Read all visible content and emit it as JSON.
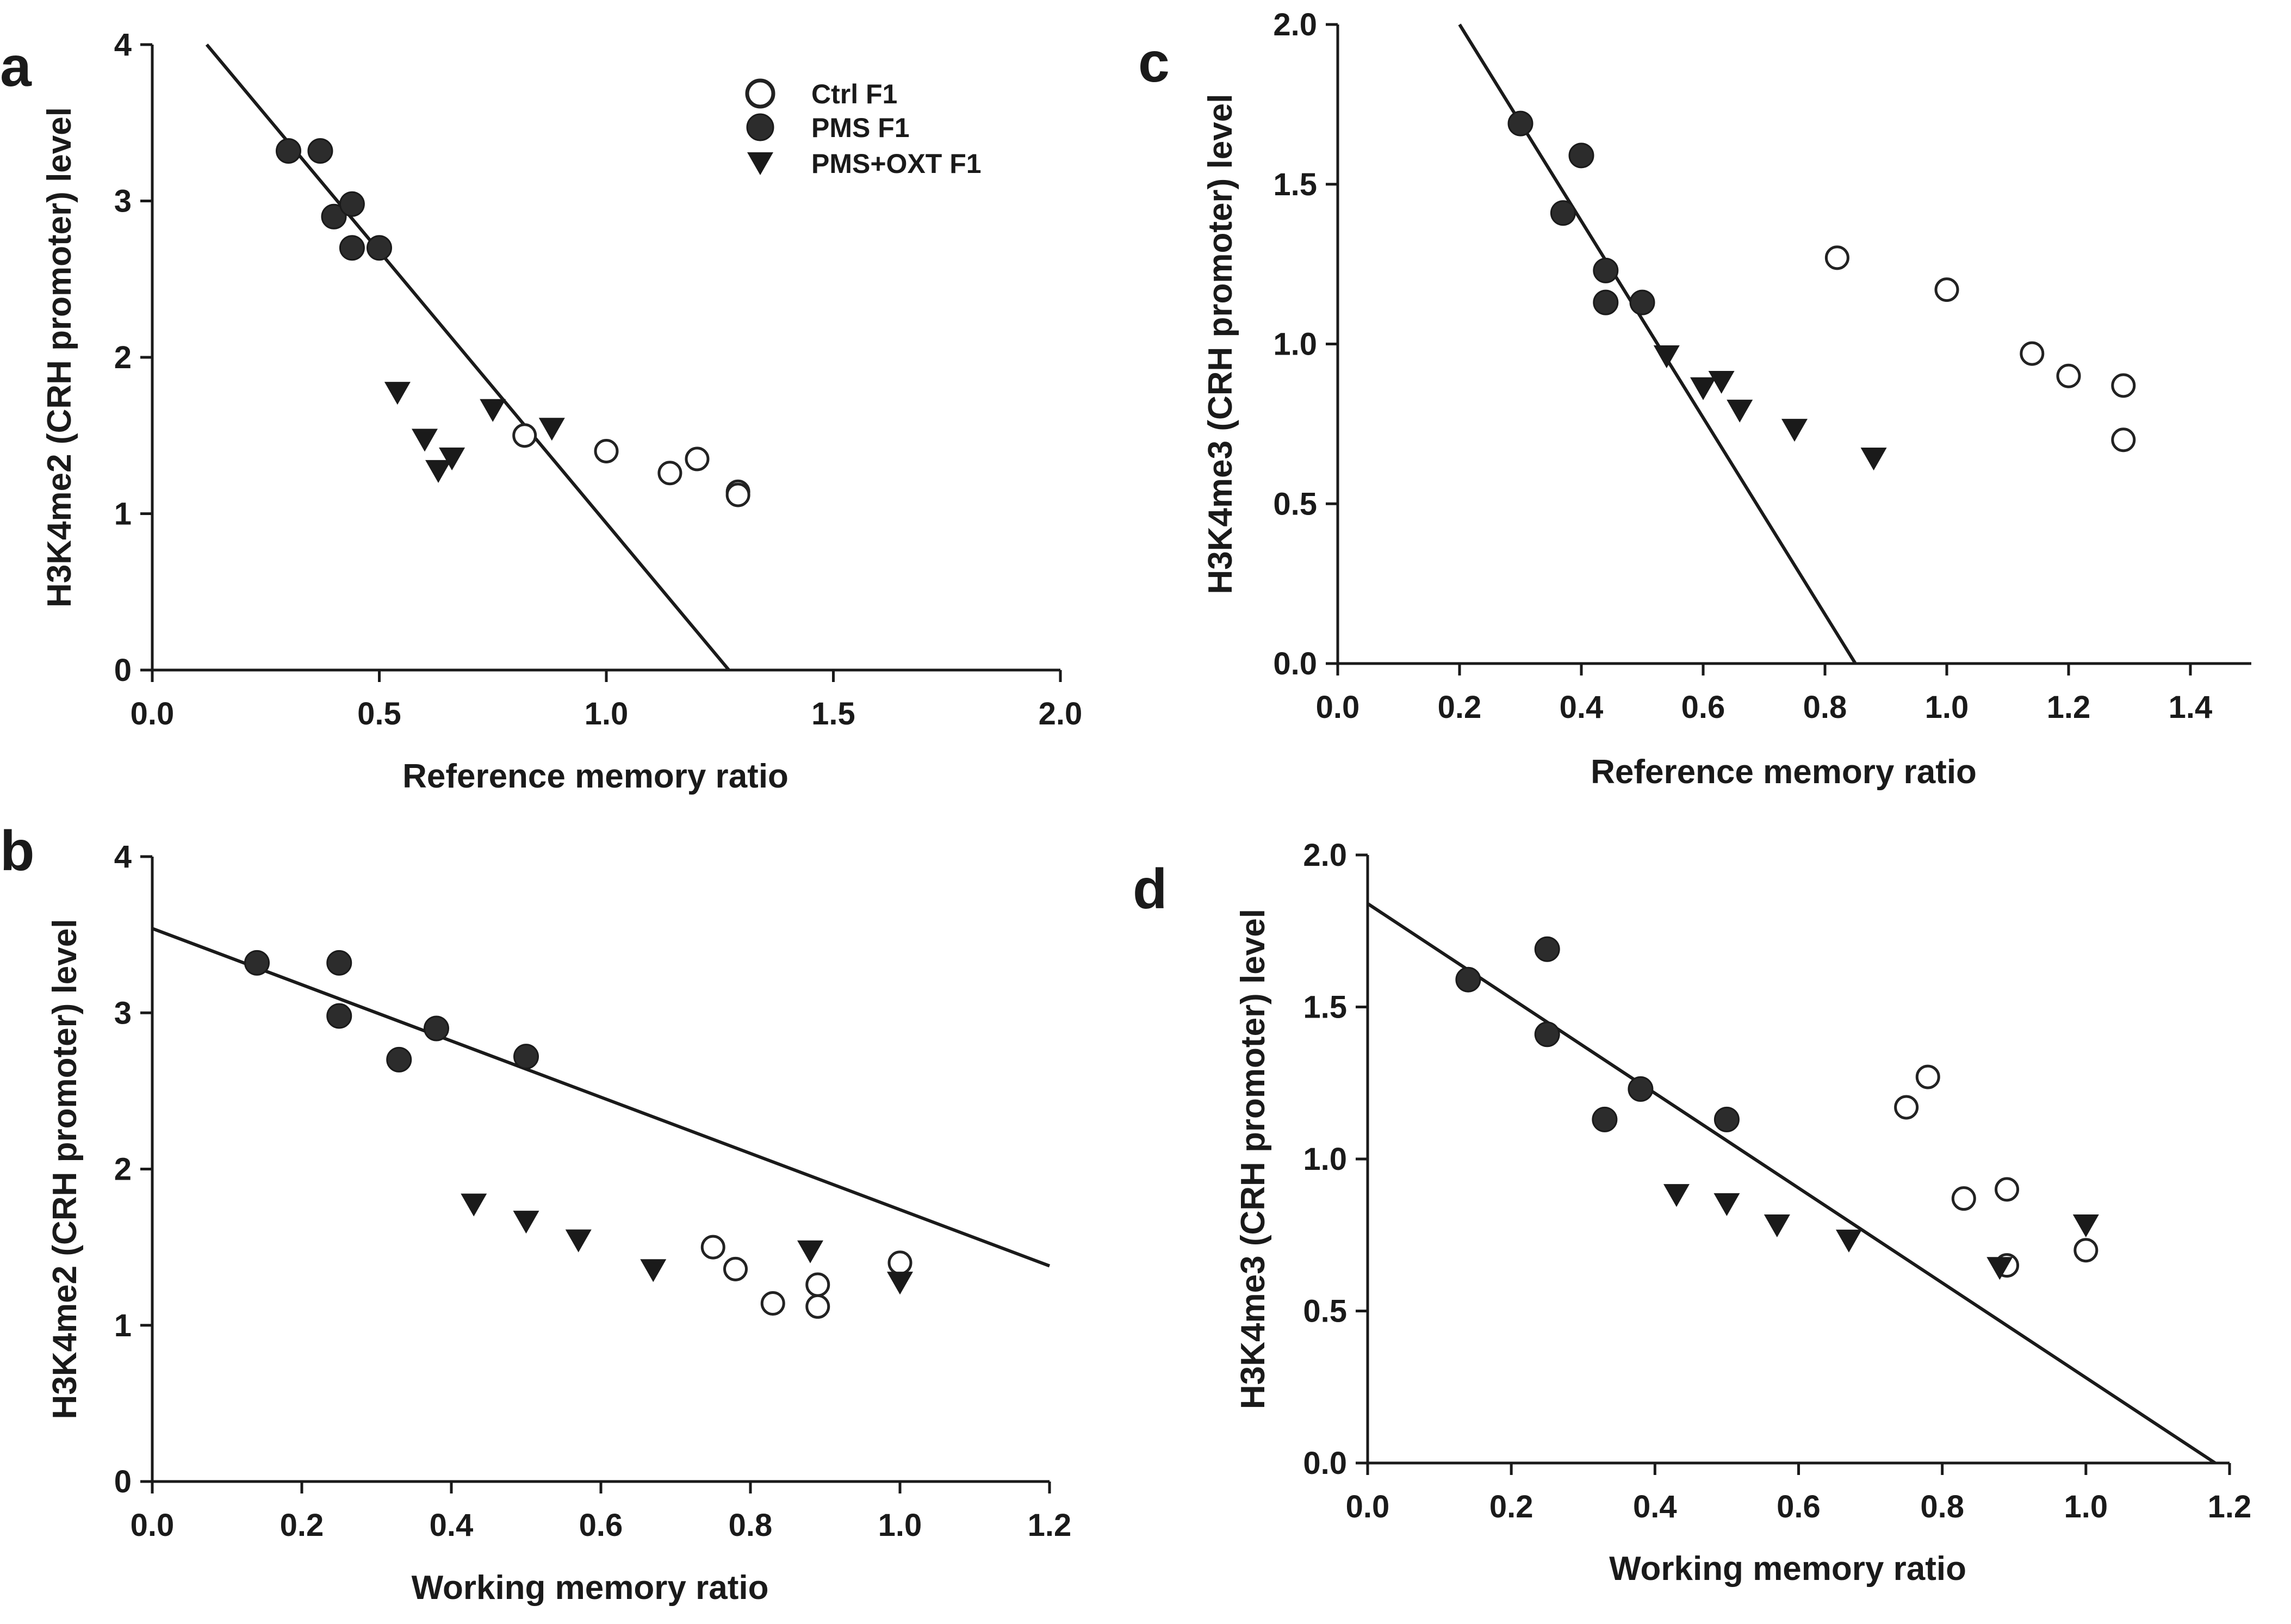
{
  "figure": {
    "legend": [
      {
        "key": "ctrl",
        "label": "Ctrl F1",
        "marker": "open-circle"
      },
      {
        "key": "pms",
        "label": "PMS F1",
        "marker": "filled-circle"
      },
      {
        "key": "oxt",
        "label": "PMS+OXT F1",
        "marker": "filled-triangle-down"
      }
    ]
  },
  "chart_data": [
    {
      "panel": "a",
      "type": "scatter",
      "xlabel": "Reference memory ratio",
      "ylabel": "H3K4me2 (CRH promoter) level",
      "xlim": [
        0,
        2.0
      ],
      "ylim": [
        0,
        4
      ],
      "xticks": [
        "0.0",
        "0.5",
        "1.0",
        "1.5",
        "2.0"
      ],
      "yticks": [
        "0",
        "1",
        "2",
        "3",
        "4"
      ],
      "legend_position": "top-right",
      "regression_line": [
        [
          0.12,
          4.0
        ],
        [
          1.27,
          0.0
        ]
      ],
      "series": [
        {
          "name": "Ctrl F1",
          "points": [
            [
              0.82,
              1.5
            ],
            [
              1.0,
              1.4
            ],
            [
              1.14,
              1.26
            ],
            [
              1.2,
              1.35
            ],
            [
              1.29,
              1.14
            ],
            [
              1.29,
              1.12
            ]
          ]
        },
        {
          "name": "PMS F1",
          "points": [
            [
              0.3,
              3.32
            ],
            [
              0.37,
              3.32
            ],
            [
              0.4,
              2.9
            ],
            [
              0.44,
              2.98
            ],
            [
              0.44,
              2.7
            ],
            [
              0.5,
              2.7
            ]
          ]
        },
        {
          "name": "PMS+OXT F1",
          "points": [
            [
              0.54,
              1.77
            ],
            [
              0.6,
              1.47
            ],
            [
              0.63,
              1.27
            ],
            [
              0.66,
              1.35
            ],
            [
              0.75,
              1.66
            ],
            [
              0.88,
              1.54
            ]
          ]
        }
      ]
    },
    {
      "panel": "b",
      "type": "scatter",
      "xlabel": "Working memory ratio",
      "ylabel": "H3K4me2 (CRH promoter) level",
      "xlim": [
        0,
        1.2
      ],
      "ylim": [
        0,
        4
      ],
      "xticks": [
        "0.0",
        "0.2",
        "0.4",
        "0.6",
        "0.8",
        "1.0",
        "1.2"
      ],
      "yticks": [
        "0",
        "1",
        "2",
        "3",
        "4"
      ],
      "regression_line": [
        [
          0.0,
          3.54
        ],
        [
          1.2,
          1.38
        ]
      ],
      "series": [
        {
          "name": "Ctrl F1",
          "points": [
            [
              0.75,
              1.5
            ],
            [
              0.78,
              1.36
            ],
            [
              0.83,
              1.14
            ],
            [
              0.89,
              1.26
            ],
            [
              0.89,
              1.12
            ],
            [
              1.0,
              1.4
            ]
          ]
        },
        {
          "name": "PMS F1",
          "points": [
            [
              0.14,
              3.32
            ],
            [
              0.25,
              3.32
            ],
            [
              0.25,
              2.98
            ],
            [
              0.33,
              2.7
            ],
            [
              0.38,
              2.9
            ],
            [
              0.5,
              2.72
            ]
          ]
        },
        {
          "name": "PMS+OXT F1",
          "points": [
            [
              0.43,
              1.77
            ],
            [
              0.5,
              1.66
            ],
            [
              0.57,
              1.54
            ],
            [
              0.67,
              1.35
            ],
            [
              0.88,
              1.47
            ],
            [
              1.0,
              1.27
            ]
          ]
        }
      ]
    },
    {
      "panel": "c",
      "type": "scatter",
      "xlabel": "Reference memory ratio",
      "ylabel": "H3K4me3 (CRH promoter) level",
      "xlim": [
        0,
        1.5
      ],
      "ylim": [
        0,
        2.0
      ],
      "xticks": [
        "0.0",
        "0.2",
        "0.4",
        "0.6",
        "0.8",
        "1.0",
        "1.2",
        "1.4"
      ],
      "yticks": [
        "0.0",
        "0.5",
        "1.0",
        "1.5",
        "2.0"
      ],
      "regression_line": [
        [
          0.2,
          2.0
        ],
        [
          0.85,
          0.0
        ]
      ],
      "series": [
        {
          "name": "Ctrl F1",
          "points": [
            [
              0.82,
              1.27
            ],
            [
              1.0,
              1.17
            ],
            [
              1.14,
              0.97
            ],
            [
              1.2,
              0.9
            ],
            [
              1.29,
              0.87
            ],
            [
              1.29,
              0.7
            ]
          ]
        },
        {
          "name": "PMS F1",
          "points": [
            [
              0.3,
              1.69
            ],
            [
              0.37,
              1.41
            ],
            [
              0.4,
              1.59
            ],
            [
              0.44,
              1.23
            ],
            [
              0.44,
              1.13
            ],
            [
              0.5,
              1.13
            ]
          ]
        },
        {
          "name": "PMS+OXT F1",
          "points": [
            [
              0.54,
              0.96
            ],
            [
              0.6,
              0.86
            ],
            [
              0.63,
              0.88
            ],
            [
              0.66,
              0.79
            ],
            [
              0.75,
              0.73
            ],
            [
              0.88,
              0.64
            ]
          ]
        }
      ]
    },
    {
      "panel": "d",
      "type": "scatter",
      "xlabel": "Working memory ratio",
      "ylabel": "H3K4me3 (CRH promoter) level",
      "xlim": [
        0,
        1.2
      ],
      "ylim": [
        0,
        2.0
      ],
      "xticks": [
        "0.0",
        "0.2",
        "0.4",
        "0.6",
        "0.8",
        "1.0",
        "1.2"
      ],
      "yticks": [
        "0.0",
        "0.5",
        "1.0",
        "1.5",
        "2.0"
      ],
      "regression_line": [
        [
          0.0,
          1.84
        ],
        [
          1.18,
          0.0
        ]
      ],
      "series": [
        {
          "name": "Ctrl F1",
          "points": [
            [
              0.75,
              1.17
            ],
            [
              0.78,
              1.27
            ],
            [
              0.83,
              0.87
            ],
            [
              0.89,
              0.9
            ],
            [
              0.89,
              0.65
            ],
            [
              1.0,
              0.7
            ]
          ]
        },
        {
          "name": "PMS F1",
          "points": [
            [
              0.14,
              1.59
            ],
            [
              0.25,
              1.69
            ],
            [
              0.25,
              1.41
            ],
            [
              0.33,
              1.13
            ],
            [
              0.38,
              1.23
            ],
            [
              0.5,
              1.13
            ]
          ]
        },
        {
          "name": "PMS+OXT F1",
          "points": [
            [
              0.43,
              0.88
            ],
            [
              0.5,
              0.85
            ],
            [
              0.57,
              0.78
            ],
            [
              0.67,
              0.73
            ],
            [
              0.88,
              0.64
            ],
            [
              1.0,
              0.78
            ]
          ]
        }
      ]
    }
  ]
}
